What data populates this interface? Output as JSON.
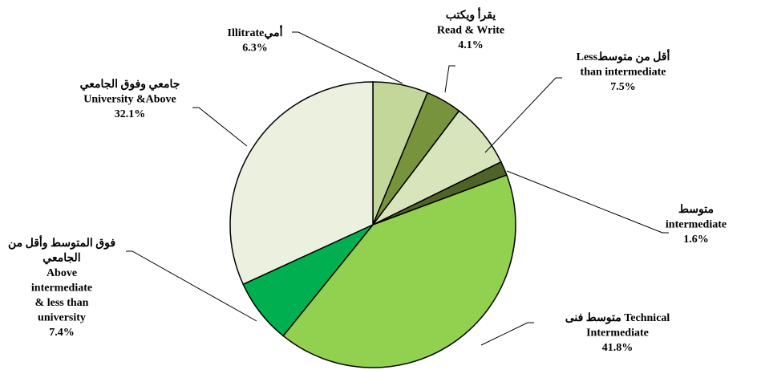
{
  "chart_data": {
    "type": "pie",
    "labels": [
      [
        "Illitrateأمي"
      ],
      [
        "يقرأ ويكتب",
        "Read & Write"
      ],
      [
        "Lessأقل من متوسط",
        "than intermediate"
      ],
      [
        "متوسط",
        "intermediate"
      ],
      [
        "متوسط فنى Technical",
        "Intermediate"
      ],
      [
        "فوق المتوسط وأقل من",
        "الجامعي",
        "Above",
        "intermediate",
        "& less than",
        "university"
      ],
      [
        "جامعي وفوق الجامعي",
        "University &Above"
      ]
    ],
    "values": [
      6.3,
      4.1,
      7.5,
      1.6,
      41.8,
      7.4,
      32.1
    ],
    "value_labels": [
      "6.3%",
      "4.1%",
      "7.5%",
      "1.6%",
      "41.8%",
      "7.4%",
      "32.1%"
    ],
    "colors": [
      "#c4d79b",
      "#77933c",
      "#d8e4bc",
      "#4f6228",
      "#92d050",
      "#00b050",
      "#ebf1de"
    ]
  }
}
